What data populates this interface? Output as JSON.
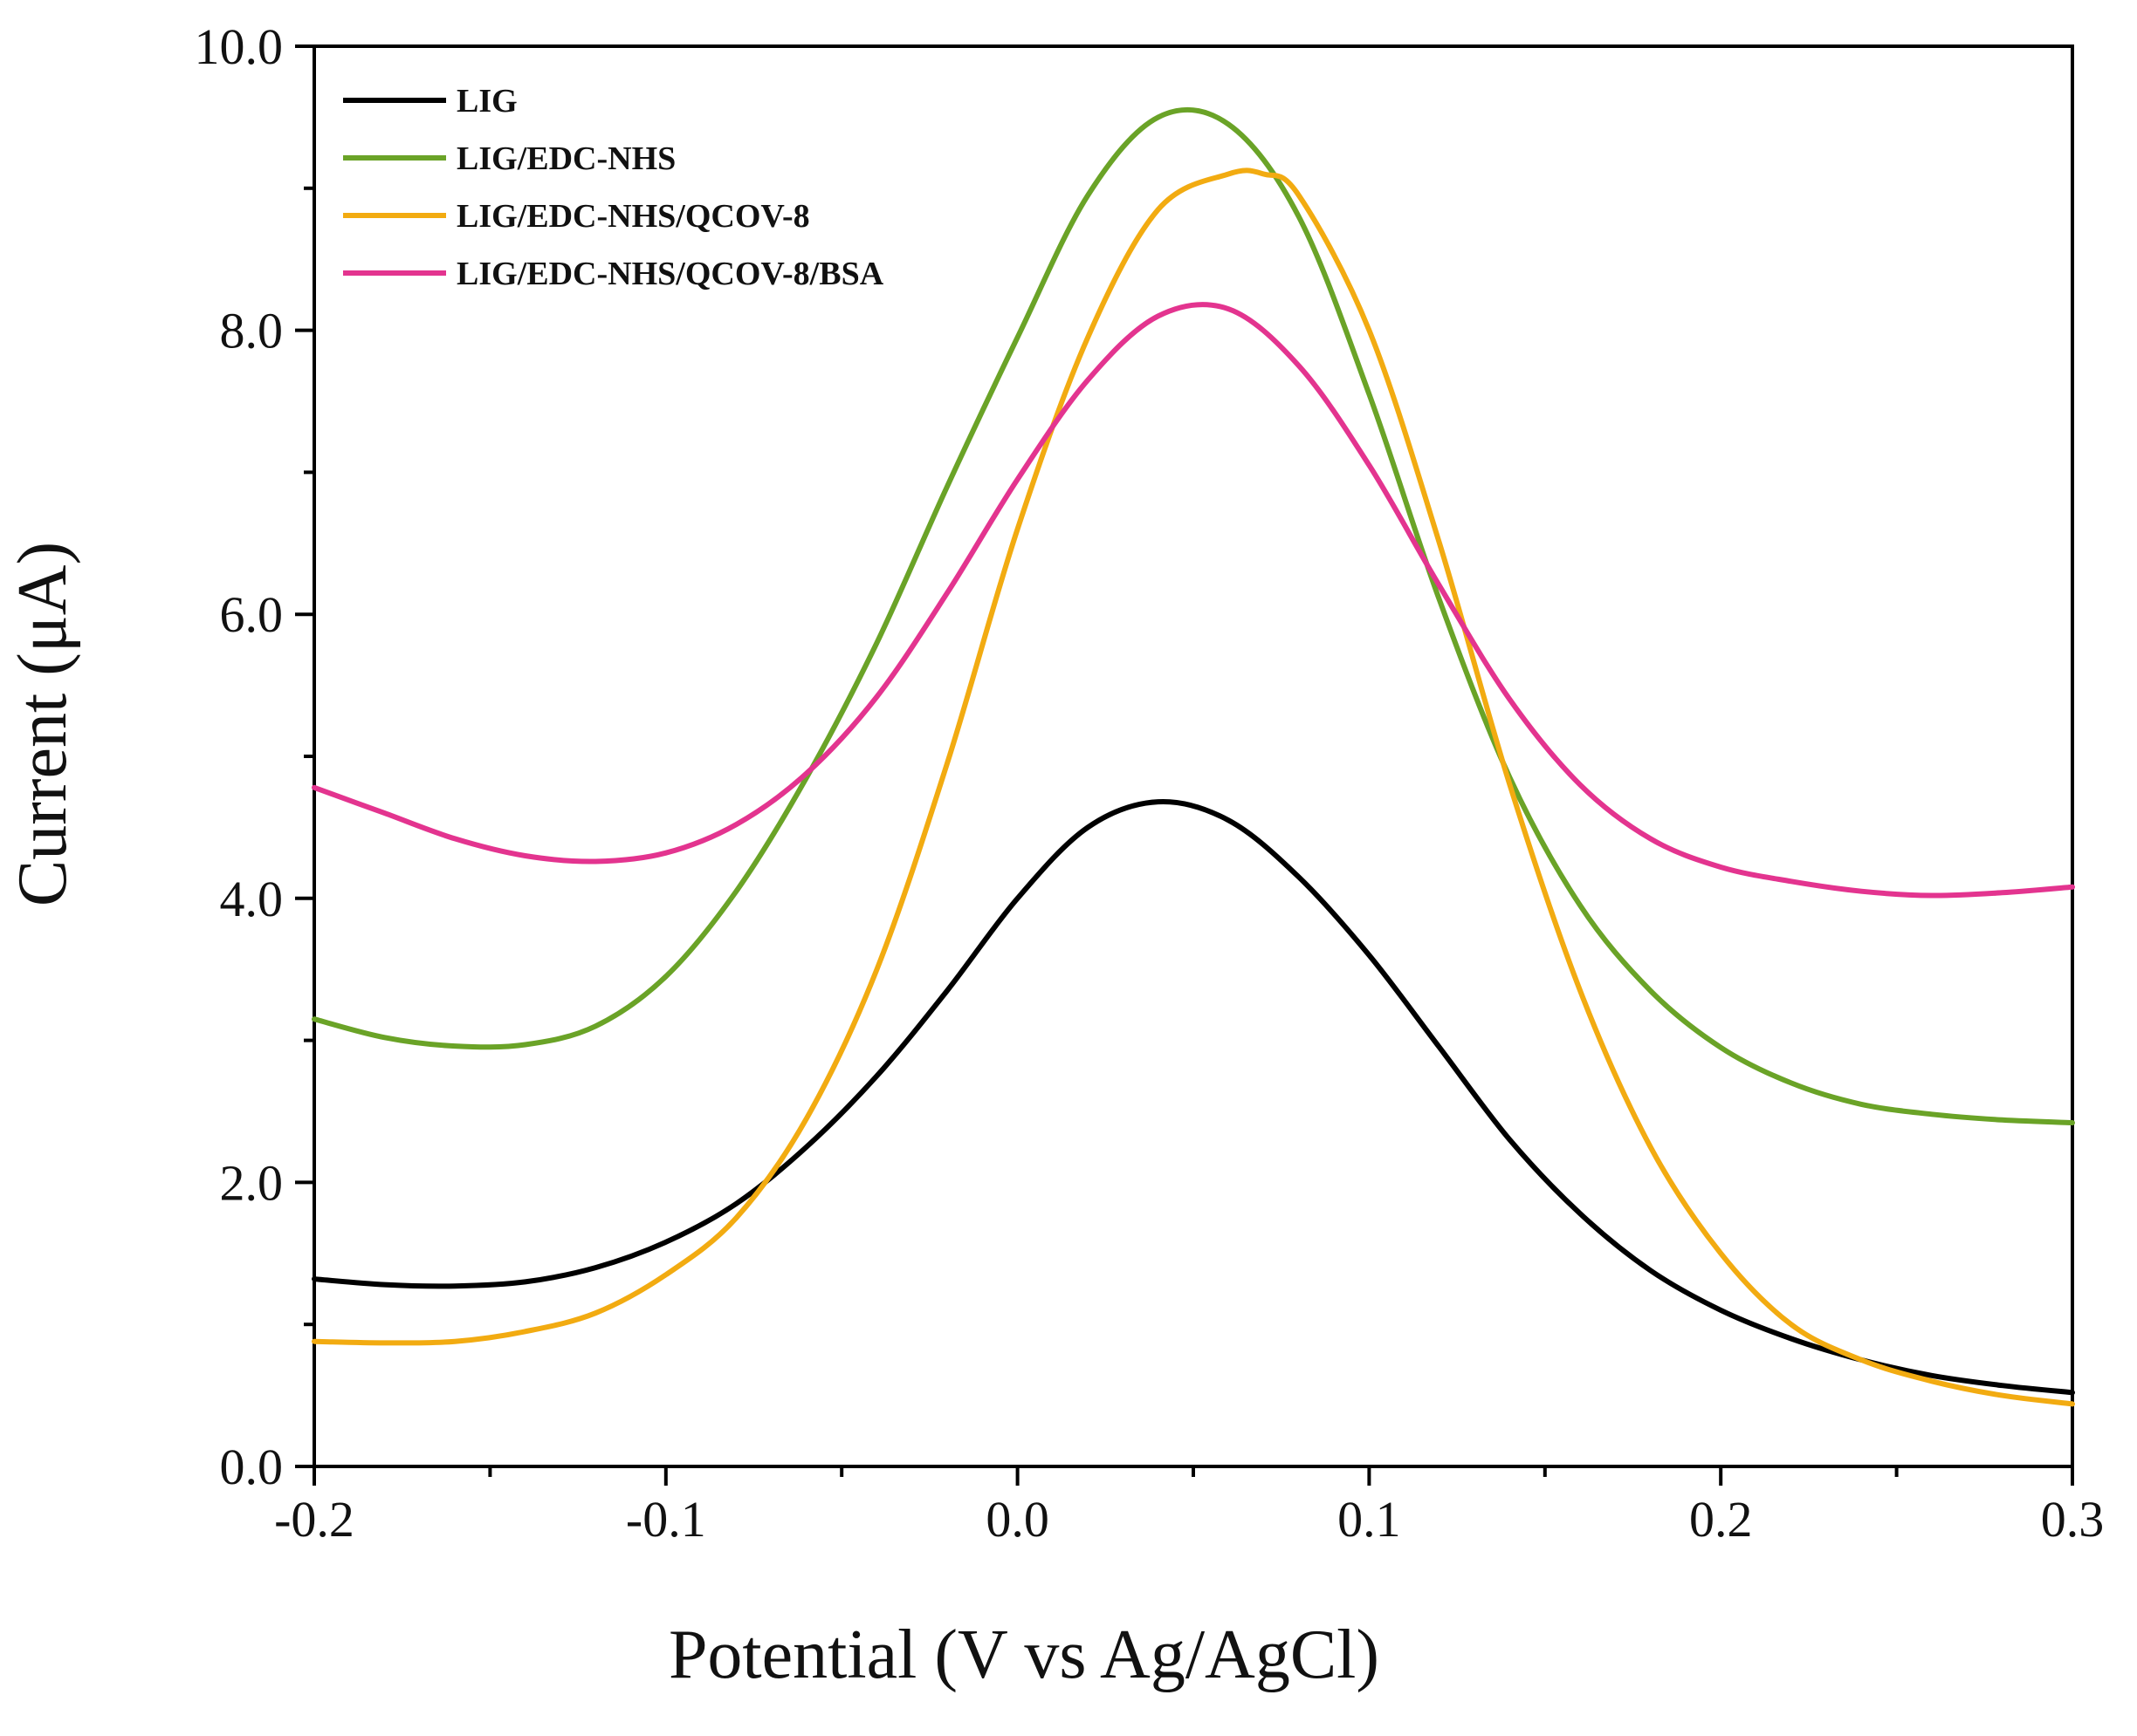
{
  "chart_data": {
    "type": "line",
    "title": "",
    "xlabel": "Potential (V vs Ag/AgCl)",
    "ylabel": "Current (μA)",
    "xlim": [
      -0.2,
      0.3
    ],
    "ylim": [
      0.0,
      10.0
    ],
    "x_ticks": [
      -0.2,
      -0.1,
      0.0,
      0.1,
      0.2,
      0.3
    ],
    "x_tick_labels": [
      "-0.2",
      "-0.1",
      "0.0",
      "0.1",
      "0.2",
      "0.3"
    ],
    "y_ticks": [
      0,
      2,
      4,
      6,
      8,
      10
    ],
    "y_tick_labels": [
      "0.0",
      "2.0",
      "4.0",
      "6.0",
      "8.0",
      "10.0"
    ],
    "grid": false,
    "legend_position": "top-left",
    "series": [
      {
        "name": "LIG",
        "color": "#000000",
        "x": [
          -0.2,
          -0.18,
          -0.16,
          -0.14,
          -0.12,
          -0.1,
          -0.08,
          -0.06,
          -0.04,
          -0.02,
          0.0,
          0.02,
          0.04,
          0.06,
          0.08,
          0.1,
          0.12,
          0.14,
          0.16,
          0.18,
          0.2,
          0.22,
          0.24,
          0.26,
          0.28,
          0.3
        ],
        "y": [
          1.32,
          1.28,
          1.27,
          1.3,
          1.4,
          1.58,
          1.85,
          2.25,
          2.75,
          3.35,
          4.0,
          4.5,
          4.68,
          4.55,
          4.15,
          3.6,
          2.95,
          2.3,
          1.78,
          1.38,
          1.1,
          0.9,
          0.75,
          0.64,
          0.57,
          0.52
        ]
      },
      {
        "name": "LIG/EDC-NHS",
        "color": "#6aa327",
        "x": [
          -0.2,
          -0.18,
          -0.16,
          -0.14,
          -0.12,
          -0.1,
          -0.08,
          -0.06,
          -0.04,
          -0.02,
          0.0,
          0.02,
          0.04,
          0.06,
          0.08,
          0.1,
          0.12,
          0.14,
          0.16,
          0.18,
          0.2,
          0.22,
          0.24,
          0.26,
          0.28,
          0.3
        ],
        "y": [
          3.15,
          3.02,
          2.96,
          2.97,
          3.1,
          3.45,
          4.05,
          4.85,
          5.8,
          6.9,
          7.95,
          8.95,
          9.5,
          9.45,
          8.8,
          7.55,
          6.1,
          4.85,
          3.95,
          3.35,
          2.95,
          2.7,
          2.55,
          2.48,
          2.44,
          2.42
        ]
      },
      {
        "name": "LIG/EDC-NHS/QCOV-8",
        "color": "#f2ab11",
        "x": [
          -0.2,
          -0.18,
          -0.16,
          -0.14,
          -0.12,
          -0.1,
          -0.08,
          -0.06,
          -0.04,
          -0.02,
          0.0,
          0.02,
          0.04,
          0.06,
          0.07,
          0.08,
          0.1,
          0.12,
          0.14,
          0.16,
          0.18,
          0.2,
          0.22,
          0.24,
          0.26,
          0.28,
          0.3
        ],
        "y": [
          0.88,
          0.87,
          0.88,
          0.95,
          1.08,
          1.35,
          1.75,
          2.45,
          3.5,
          4.95,
          6.6,
          7.95,
          8.85,
          9.1,
          9.1,
          8.95,
          8.0,
          6.5,
          4.8,
          3.35,
          2.25,
          1.5,
          1.0,
          0.75,
          0.6,
          0.5,
          0.44
        ]
      },
      {
        "name": "LIG/EDC-NHS/QCOV-8/BSA",
        "color": "#e3348f",
        "x": [
          -0.2,
          -0.18,
          -0.16,
          -0.14,
          -0.12,
          -0.1,
          -0.08,
          -0.06,
          -0.04,
          -0.02,
          0.0,
          0.02,
          0.04,
          0.06,
          0.08,
          0.1,
          0.12,
          0.14,
          0.16,
          0.18,
          0.2,
          0.22,
          0.24,
          0.26,
          0.28,
          0.3
        ],
        "y": [
          4.78,
          4.6,
          4.42,
          4.3,
          4.26,
          4.32,
          4.52,
          4.88,
          5.42,
          6.15,
          6.95,
          7.65,
          8.1,
          8.15,
          7.75,
          7.05,
          6.2,
          5.4,
          4.8,
          4.42,
          4.22,
          4.12,
          4.05,
          4.02,
          4.04,
          4.08
        ]
      }
    ]
  }
}
